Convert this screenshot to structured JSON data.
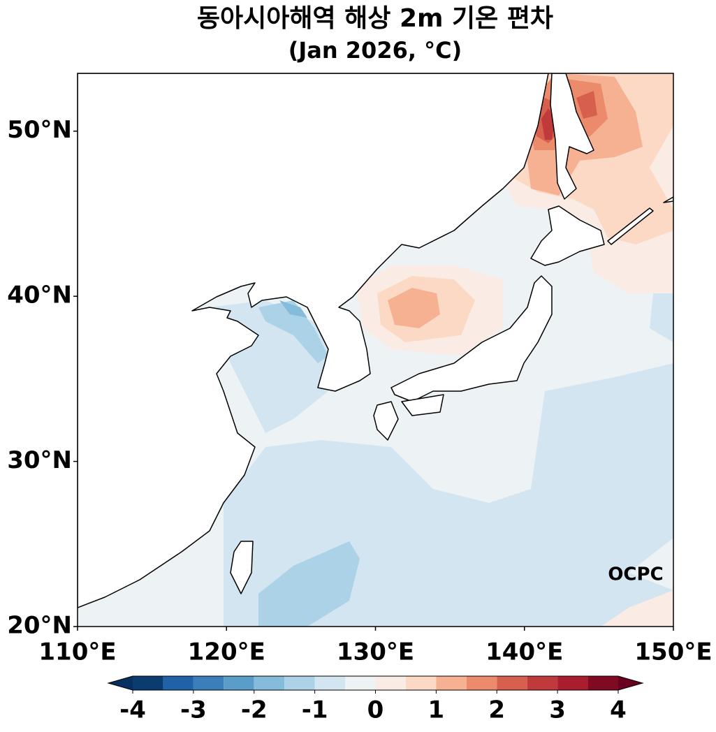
{
  "map": {
    "title": "동아시아해역 해상 2m 기온 편차",
    "subtitle": "(Jan 2026, °C)",
    "xlim": [
      110,
      150
    ],
    "ylim": [
      20,
      53.5
    ],
    "xticks": [
      {
        "value": 110,
        "label": "110°E"
      },
      {
        "value": 120,
        "label": "120°E"
      },
      {
        "value": 130,
        "label": "130°E"
      },
      {
        "value": 140,
        "label": "140°E"
      },
      {
        "value": 150,
        "label": "150°E"
      }
    ],
    "yticks": [
      {
        "value": 20,
        "label": "20°N"
      },
      {
        "value": 30,
        "label": "30°N"
      },
      {
        "value": 40,
        "label": "40°N"
      },
      {
        "value": 50,
        "label": "50°N"
      }
    ],
    "colorbar": {
      "levels": [
        -4,
        -3.5,
        -3,
        -2.5,
        -2,
        -1.5,
        -1,
        -0.5,
        0,
        0.5,
        1,
        1.5,
        2,
        2.5,
        3,
        3.5,
        4
      ],
      "colors": [
        "#0b3c6f",
        "#1f62a7",
        "#3a7fb9",
        "#5a9dc9",
        "#86bcdb",
        "#abd2e6",
        "#d2e5f0",
        "#edf2f5",
        "#faece4",
        "#fcd9c5",
        "#f6b193",
        "#eb8b6c",
        "#d6604d",
        "#c13a3b",
        "#a91d2e",
        "#7f0a22"
      ],
      "under_color": "#073060",
      "over_color": "#6a0020",
      "ticks": [
        -4,
        -3,
        -2,
        -1,
        0,
        1,
        2,
        3,
        4
      ]
    },
    "logo": "OCPC"
  }
}
